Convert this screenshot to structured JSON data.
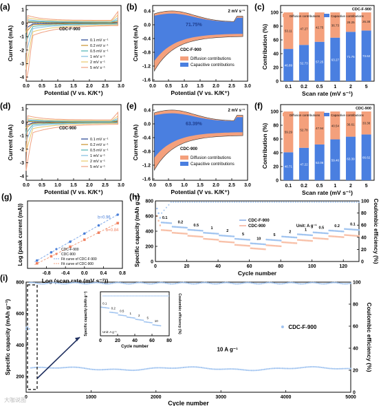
{
  "colors": {
    "cv_01": "#1f3f8f",
    "cv_02": "#c8902a",
    "cv_05": "#4ab0b0",
    "cv_1": "#7fbce0",
    "cv_2": "#e8c86a",
    "cv_5": "#f0a080",
    "cdc_f900_blue": "#4a7fd8",
    "cdc_f900_light": "#9fc3f0",
    "cdc900_orange": "#f08060",
    "cdc900_light": "#f8c0a8",
    "diffusion": "#f4a07c",
    "capacitive": "#4a7fe0",
    "fit_blue": "#7ea8e8",
    "fit_orange": "#f0a080",
    "arrow": "#1f2f5f"
  },
  "panel_labels": [
    "(a)",
    "(b)",
    "(c)",
    "(d)",
    "(e)",
    "(f)",
    "(g)",
    "(h)",
    "(i)"
  ],
  "chart_data": [
    {
      "id": "a",
      "type": "line",
      "xlabel": "Potential (V vs. K/K⁺)",
      "ylabel": "Current (mA)",
      "xlim": [
        0.0,
        3.0
      ],
      "ylim": [
        -4,
        1.2
      ],
      "xticks": [
        "0.0",
        "0.5",
        "1.0",
        "1.5",
        "2.0",
        "2.5",
        "3.0"
      ],
      "yticks": [
        "1",
        "0",
        "-1",
        "-2",
        "-3",
        "-4"
      ],
      "annotation": "CDC-F-900",
      "legend": [
        "0.1 mV s⁻¹",
        "0.2 mV s⁻¹",
        "0.5 mV s⁻¹",
        "1 mV s⁻¹",
        "2 mV s⁻¹",
        "5 mV s⁻¹"
      ],
      "series": [
        {
          "name": "0.1 mV s⁻¹",
          "scale": 0.08
        },
        {
          "name": "0.2 mV s⁻¹",
          "scale": 0.14
        },
        {
          "name": "0.5 mV s⁻¹",
          "scale": 0.28
        },
        {
          "name": "1 mV s⁻¹",
          "scale": 0.45
        },
        {
          "name": "2 mV s⁻¹",
          "scale": 0.7
        },
        {
          "name": "5 mV s⁻¹",
          "scale": 1.0
        }
      ],
      "peak_min_current": -3.9
    },
    {
      "id": "b",
      "type": "area",
      "xlabel": "Potential (V vs. K/K⁺)",
      "ylabel": "Current (mA)",
      "xlim": [
        0.0,
        3.0
      ],
      "ylim": [
        -1.6,
        0.5
      ],
      "xticks": [
        "0.0",
        "0.5",
        "1.0",
        "1.5",
        "2.0",
        "2.5",
        "3.0"
      ],
      "yticks": [
        "0.4",
        "0.0",
        "-0.4",
        "-0.8",
        "-1.2",
        "-1.6"
      ],
      "scan_rate": "2 mV s⁻¹",
      "capacitive_percent_label": "71.75%",
      "sample": "CDC-F-900",
      "legend": [
        "Diffusion contributions",
        "Capacitive contributions"
      ]
    },
    {
      "id": "c",
      "type": "bar",
      "title": "CDC-F-900",
      "xlabel": "Scan rate (mV s⁻¹)",
      "ylabel": "Contribution (%)",
      "ylim": [
        0,
        100
      ],
      "yticks": [
        "0",
        "20",
        "40",
        "60",
        "80",
        "100"
      ],
      "categories": [
        "0.1",
        "0.2",
        "0.5",
        "1",
        "2",
        "5"
      ],
      "legend": [
        "Diffusion contributions",
        "Capacitive contributions"
      ],
      "series": [
        {
          "name": "Capacitive contributions",
          "values": [
            46.89,
            52.73,
            57.25,
            63.27,
            71.75,
            73.62
          ]
        },
        {
          "name": "Diffusion contributions",
          "values": [
            53.11,
            47.27,
            42.75,
            36.73,
            28.25,
            26.38
          ]
        }
      ]
    },
    {
      "id": "d",
      "type": "line",
      "xlabel": "Potential (V vs. K/K⁺)",
      "ylabel": "Current (mA)",
      "xlim": [
        0.0,
        3.0
      ],
      "ylim": [
        -4,
        1.2
      ],
      "xticks": [
        "0.0",
        "0.5",
        "1.0",
        "1.5",
        "2.0",
        "2.5",
        "3.0"
      ],
      "yticks": [
        "1",
        "0",
        "-1",
        "-2",
        "-3",
        "-4"
      ],
      "annotation": "CDC-900",
      "legend": [
        "0.1 mV s⁻¹",
        "0.2 mV s⁻¹",
        "0.5 mV s⁻¹",
        "1 mV s⁻¹",
        "2 mV s⁻¹",
        "5 mV s⁻¹"
      ],
      "series": [
        {
          "name": "0.1 mV s⁻¹",
          "scale": 0.06
        },
        {
          "name": "0.2 mV s⁻¹",
          "scale": 0.1
        },
        {
          "name": "0.5 mV s⁻¹",
          "scale": 0.2
        },
        {
          "name": "1 mV s⁻¹",
          "scale": 0.33
        },
        {
          "name": "2 mV s⁻¹",
          "scale": 0.52
        },
        {
          "name": "5 mV s⁻¹",
          "scale": 0.85
        }
      ],
      "peak_min_current": -3.2
    },
    {
      "id": "e",
      "type": "area",
      "xlabel": "Potential (V vs. K/K⁺)",
      "ylabel": "Current (mA)",
      "xlim": [
        0.0,
        3.0
      ],
      "ylim": [
        -1.6,
        0.5
      ],
      "xticks": [
        "0.0",
        "0.5",
        "1.0",
        "1.5",
        "2.0",
        "2.5",
        "3.0"
      ],
      "yticks": [
        "0.4",
        "0.0",
        "-0.4",
        "-0.8",
        "-1.2",
        "-1.6"
      ],
      "scan_rate": "2 mV s⁻¹",
      "capacitive_percent_label": "63.39%",
      "sample": "CDC-900",
      "legend": [
        "Diffusion contributions",
        "Capacitive contributions"
      ]
    },
    {
      "id": "f",
      "type": "bar",
      "title": "CDC-900",
      "xlabel": "Scan rate (mV s⁻¹)",
      "ylabel": "Contribution (%)",
      "ylim": [
        0,
        100
      ],
      "yticks": [
        "0",
        "20",
        "40",
        "60",
        "80",
        "100"
      ],
      "categories": [
        "0.1",
        "0.2",
        "0.5",
        "1",
        "2",
        "5"
      ],
      "legend": [
        "Diffusion contributions",
        "Capacitive contributions"
      ],
      "series": [
        {
          "name": "Capacitive contributions",
          "values": [
            40.71,
            47.22,
            52.06,
            59.46,
            63.39,
            66.62
          ]
        },
        {
          "name": "Diffusion contributions",
          "values": [
            59.29,
            52.78,
            47.94,
            40.54,
            36.61,
            33.38
          ]
        }
      ]
    },
    {
      "id": "g",
      "type": "scatter",
      "xlabel": "Log (scan rate (mV s⁻¹))",
      "ylabel": "Log (peak current (mA))",
      "xlim": [
        -1.2,
        0.8
      ],
      "ylim": [
        -2.0,
        0.4
      ],
      "xticks": [
        "-0.8",
        "-0.4",
        "0.0",
        "0.4",
        "0.8"
      ],
      "legend": [
        "CDC-F-900",
        "CDC-900",
        "Fit curve of CDC-F-900",
        "Fit curve of CDC-900"
      ],
      "b_labels": [
        "b=0.96",
        "b=0.84"
      ],
      "series": [
        {
          "name": "CDC-F-900",
          "x": [
            -1.0,
            -0.7,
            -0.3,
            0.0,
            0.3,
            0.7
          ],
          "y": [
            -1.72,
            -1.43,
            -1.05,
            -0.76,
            -0.47,
            -0.09
          ]
        },
        {
          "name": "CDC-900",
          "x": [
            -1.0,
            -0.7,
            -0.3,
            0.0,
            0.3,
            0.7
          ],
          "y": [
            -1.82,
            -1.57,
            -1.23,
            -0.98,
            -0.73,
            -0.39
          ]
        }
      ]
    },
    {
      "id": "h",
      "type": "scatter",
      "xlabel": "Cycle number",
      "ylabel": "Specific capacity (mAh g⁻¹)",
      "ylabel_right": "Coulombic efficiency (%)",
      "xlim": [
        0,
        130
      ],
      "ylim": [
        0,
        800
      ],
      "ylim_right": [
        0,
        100
      ],
      "xticks": [
        "0",
        "20",
        "40",
        "60",
        "80",
        "100",
        "120"
      ],
      "yticks": [
        "0",
        "200",
        "400",
        "600",
        "800"
      ],
      "yticks_right": [
        "0",
        "20",
        "40",
        "60",
        "80",
        "100"
      ],
      "legend": [
        "CDC-F-900",
        "CDC-900"
      ],
      "unit_label": "Unit:  A g⁻¹",
      "rate_labels": [
        "0.1",
        "0.2",
        "0.5",
        "1",
        "2",
        "5",
        "10",
        "5",
        "2",
        "1",
        "0.5",
        "0.2",
        "0.1"
      ],
      "segments": {
        "rates": [
          "0.1",
          "0.2",
          "0.5",
          "1",
          "2",
          "5",
          "10",
          "5",
          "2",
          "1",
          "0.5",
          "0.2",
          "0.1"
        ],
        "cdc_f900_capacity": [
          520,
          460,
          420,
          380,
          345,
          300,
          240,
          290,
          330,
          360,
          385,
          410,
          430
        ],
        "cdc900_capacity": [
          420,
          380,
          340,
          300,
          265,
          220,
          175,
          215,
          255,
          285,
          310,
          335,
          350
        ]
      },
      "efficiency": 98
    },
    {
      "id": "i",
      "type": "scatter",
      "xlabel": "Cycle number",
      "ylabel": "Specific capacity (mAh g⁻¹)",
      "ylabel_right": "Coulombic efficiency (%)",
      "xlim": [
        0,
        5000
      ],
      "ylim": [
        100,
        800
      ],
      "ylim_right": [
        0,
        100
      ],
      "xticks": [
        "0",
        "1000",
        "2000",
        "3000",
        "4000",
        "5000"
      ],
      "yticks": [
        "200",
        "400",
        "600",
        "800"
      ],
      "yticks_right": [
        "0",
        "20",
        "40",
        "60",
        "80",
        "100"
      ],
      "legend": [
        "CDC-F-900"
      ],
      "current_label": "10 A g⁻¹",
      "capacity_level": 250,
      "efficiency": 99,
      "inset": {
        "xlabel": "Cycle number",
        "ylabel": "Specific capacity (mAh g⁻¹)",
        "ylabel_right": "Coulombic efficiency (%)",
        "xlim": [
          0,
          80
        ],
        "ylim": [
          0,
          800
        ],
        "xticks": [
          "0",
          "20",
          "40",
          "60",
          "80"
        ],
        "yticks": [
          "0",
          "200",
          "400",
          "600",
          "800"
        ],
        "yticks_right": [
          "0",
          "20",
          "40",
          "60",
          "80",
          "100"
        ],
        "unit_label": "Unit:  A g⁻¹",
        "rate_labels": [
          "0.1",
          "0.2",
          "0.5",
          "1",
          "2",
          "5",
          "10"
        ],
        "capacity": [
          520,
          430,
          380,
          340,
          300,
          255,
          200
        ]
      }
    }
  ],
  "watermark": "大咖说图"
}
